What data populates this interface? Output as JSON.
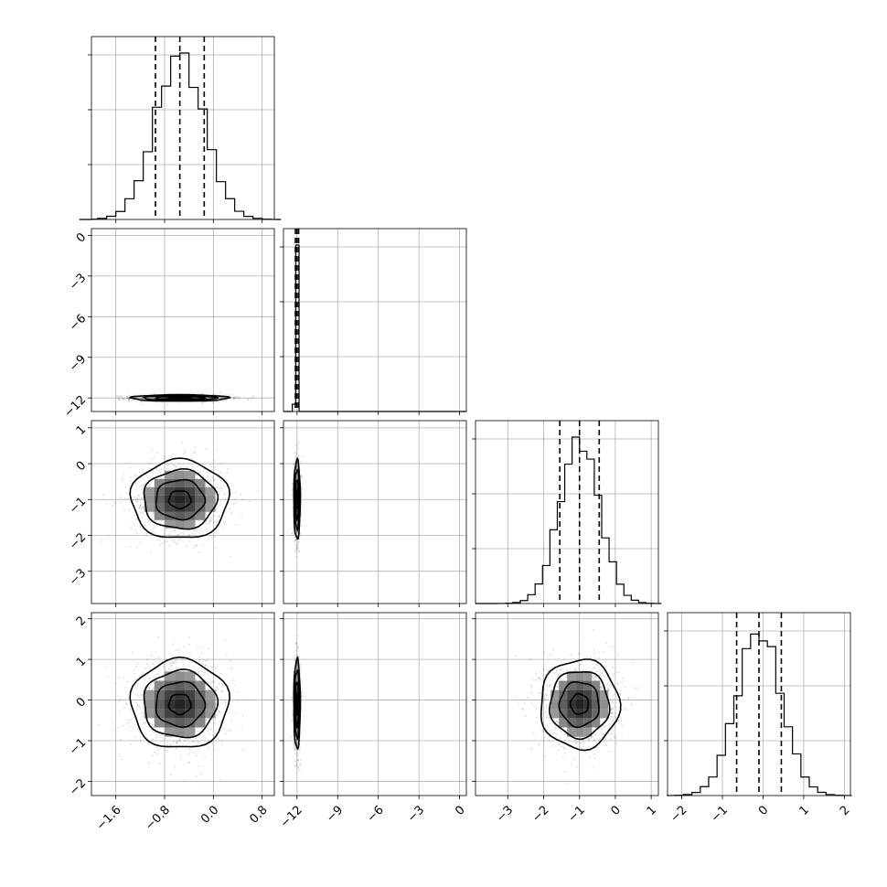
{
  "chart_data": {
    "type": "corner",
    "parameters": [
      {
        "mean": -0.55,
        "sigma": 0.4,
        "quantiles": [
          -0.95,
          -0.55,
          -0.15
        ],
        "range": [
          -2.0,
          1.0
        ],
        "ticks": [
          -1.6,
          -0.8,
          0.0,
          0.8
        ],
        "tick_labels": [
          "−1.6",
          "−0.8",
          "0.0",
          "0.8"
        ]
      },
      {
        "mean": -12.0,
        "sigma": 0.12,
        "quantiles": [
          -12.12,
          -12.0,
          -11.88
        ],
        "range": [
          -13.0,
          0.5
        ],
        "ticks": [
          -12,
          -9,
          -6,
          -3,
          0
        ],
        "tick_labels": [
          "−12",
          "−9",
          "−6",
          "−3",
          "0"
        ]
      },
      {
        "mean": -1.0,
        "sigma": 0.55,
        "quantiles": [
          -1.55,
          -1.0,
          -0.45
        ],
        "range": [
          -3.9,
          1.2
        ],
        "ticks": [
          -3,
          -2,
          -1,
          0,
          1
        ],
        "tick_labels": [
          "−3",
          "−2",
          "−1",
          "0",
          "1"
        ]
      },
      {
        "mean": -0.1,
        "sigma": 0.55,
        "quantiles": [
          -0.65,
          -0.1,
          0.45
        ],
        "range": [
          -2.35,
          2.15
        ],
        "ticks": [
          -2,
          -1,
          0,
          1,
          2
        ],
        "tick_labels": [
          "−2",
          "−1",
          "0",
          "1",
          "2"
        ]
      }
    ],
    "y_tick_labels": {
      "1": [
        "0",
        "−3",
        "−6",
        "−9",
        "−12"
      ],
      "2": [
        "1",
        "0",
        "−1",
        "−2",
        "−3"
      ],
      "3": [
        "2",
        "1",
        "0",
        "−1",
        "−2"
      ]
    },
    "grid": true,
    "legend": "none"
  }
}
